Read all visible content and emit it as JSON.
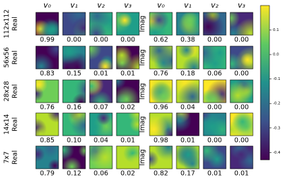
{
  "columns": [
    "v₀",
    "v₁",
    "v₂",
    "v₃"
  ],
  "part_labels": [
    "Real",
    "Imag"
  ],
  "rows": [
    {
      "size": "112x112",
      "real": [
        "0.99",
        "0.00",
        "0.00",
        "0.00"
      ],
      "imag": [
        "0.62",
        "0.38",
        "0.00",
        "0.00"
      ]
    },
    {
      "size": "56x56",
      "real": [
        "0.83",
        "0.15",
        "0.01",
        "0.01"
      ],
      "imag": [
        "0.76",
        "0.18",
        "0.06",
        "0.00"
      ]
    },
    {
      "size": "28x28",
      "real": [
        "0.76",
        "0.16",
        "0.07",
        "0.02"
      ],
      "imag": [
        "0.96",
        "0.04",
        "0.00",
        "0.00"
      ]
    },
    {
      "size": "14x14",
      "real": [
        "0.85",
        "0.10",
        "0.04",
        "0.01"
      ],
      "imag": [
        "0.98",
        "0.01",
        "0.00",
        "0.00"
      ]
    },
    {
      "size": "7x7",
      "real": [
        "0.79",
        "0.12",
        "0.06",
        "0.02"
      ],
      "imag": [
        "0.82",
        "0.17",
        "0.01",
        "0.01"
      ]
    }
  ],
  "colorbar": {
    "lim": [
      -0.43,
      0.2
    ],
    "ticks": [
      0.1,
      {
        "value": 0,
        "label": "0.0"
      },
      -0.1,
      -0.2,
      -0.3,
      -0.4
    ]
  }
}
